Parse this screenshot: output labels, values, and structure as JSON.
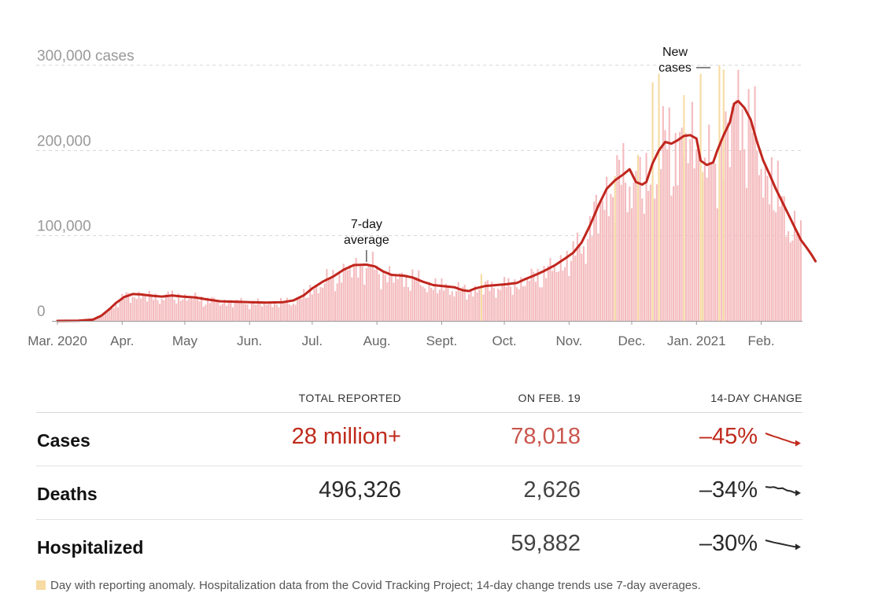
{
  "chart_data": {
    "type": "bar+line",
    "title": "",
    "xlabel": "",
    "ylabel": "cases",
    "ylim": [
      0,
      300000
    ],
    "y_ticks": [
      {
        "value": 0,
        "label": "0"
      },
      {
        "value": 100000,
        "label": "100,000"
      },
      {
        "value": 200000,
        "label": "200,000"
      },
      {
        "value": 300000,
        "label": "300,000 cases"
      }
    ],
    "x_ticks": [
      {
        "day": 0,
        "label": "Mar. 2020"
      },
      {
        "day": 31,
        "label": "Apr."
      },
      {
        "day": 61,
        "label": "May"
      },
      {
        "day": 92,
        "label": "Jun."
      },
      {
        "day": 122,
        "label": "Jul."
      },
      {
        "day": 153,
        "label": "Aug."
      },
      {
        "day": 184,
        "label": "Sept."
      },
      {
        "day": 214,
        "label": "Oct."
      },
      {
        "day": 245,
        "label": "Nov."
      },
      {
        "day": 275,
        "label": "Dec."
      },
      {
        "day": 306,
        "label": "Jan. 2021"
      },
      {
        "day": 337,
        "label": "Feb."
      }
    ],
    "total_days": 356,
    "series": [
      {
        "name": "7-day average",
        "points": [
          [
            0,
            0
          ],
          [
            10,
            200
          ],
          [
            17,
            1500
          ],
          [
            21,
            6000
          ],
          [
            25,
            14000
          ],
          [
            28,
            21000
          ],
          [
            32,
            28000
          ],
          [
            36,
            31500
          ],
          [
            40,
            31000
          ],
          [
            45,
            29500
          ],
          [
            50,
            28500
          ],
          [
            55,
            29800
          ],
          [
            60,
            28500
          ],
          [
            66,
            27500
          ],
          [
            72,
            25000
          ],
          [
            78,
            23000
          ],
          [
            85,
            22500
          ],
          [
            92,
            22000
          ],
          [
            100,
            21500
          ],
          [
            108,
            22000
          ],
          [
            113,
            24000
          ],
          [
            118,
            30000
          ],
          [
            122,
            38000
          ],
          [
            127,
            46000
          ],
          [
            132,
            52000
          ],
          [
            137,
            60000
          ],
          [
            142,
            65500
          ],
          [
            148,
            66000
          ],
          [
            152,
            64000
          ],
          [
            156,
            58000
          ],
          [
            160,
            54000
          ],
          [
            166,
            53000
          ],
          [
            170,
            51000
          ],
          [
            175,
            46000
          ],
          [
            180,
            42000
          ],
          [
            186,
            40500
          ],
          [
            190,
            39500
          ],
          [
            194,
            36000
          ],
          [
            197,
            35000
          ],
          [
            200,
            38000
          ],
          [
            205,
            41000
          ],
          [
            210,
            42000
          ],
          [
            215,
            43000
          ],
          [
            220,
            44500
          ],
          [
            224,
            49000
          ],
          [
            228,
            53000
          ],
          [
            233,
            58500
          ],
          [
            238,
            65000
          ],
          [
            243,
            73000
          ],
          [
            247,
            80000
          ],
          [
            251,
            92000
          ],
          [
            255,
            112000
          ],
          [
            259,
            135000
          ],
          [
            263,
            155000
          ],
          [
            267,
            165000
          ],
          [
            271,
            172000
          ],
          [
            274,
            178000
          ],
          [
            277,
            163000
          ],
          [
            280,
            160000
          ],
          [
            282,
            163000
          ],
          [
            285,
            185000
          ],
          [
            288,
            200000
          ],
          [
            291,
            210000
          ],
          [
            294,
            208000
          ],
          [
            297,
            212000
          ],
          [
            300,
            217000
          ],
          [
            303,
            218000
          ],
          [
            306,
            214000
          ],
          [
            308,
            188000
          ],
          [
            311,
            183000
          ],
          [
            314,
            186000
          ],
          [
            316,
            200000
          ],
          [
            319,
            218000
          ],
          [
            322,
            233000
          ],
          [
            324,
            255000
          ],
          [
            326,
            258000
          ],
          [
            329,
            250000
          ],
          [
            332,
            236000
          ],
          [
            335,
            210000
          ],
          [
            338,
            188000
          ],
          [
            341,
            172000
          ],
          [
            344,
            155000
          ],
          [
            347,
            140000
          ],
          [
            350,
            125000
          ],
          [
            353,
            110000
          ],
          [
            356,
            95000
          ],
          [
            359,
            85000
          ],
          [
            361,
            78000
          ],
          [
            363,
            70000
          ]
        ]
      }
    ],
    "bars": "daily new cases scatter around the 7-day average",
    "anomaly_days": [
      {
        "day": 203,
        "value": 55000
      },
      {
        "day": 267,
        "value": 170000
      },
      {
        "day": 278,
        "value": 195000
      },
      {
        "day": 285,
        "value": 280000
      },
      {
        "day": 288,
        "value": 290000
      },
      {
        "day": 300,
        "value": 265000
      },
      {
        "day": 308,
        "value": 290000
      },
      {
        "day": 309,
        "value": 175000
      },
      {
        "day": 317,
        "value": 300000
      },
      {
        "day": 319,
        "value": 295000
      }
    ],
    "annotations": [
      {
        "text_lines": [
          "7-day",
          "average"
        ],
        "day": 148
      },
      {
        "text_lines": [
          "New",
          "cases"
        ],
        "day": 320
      }
    ]
  },
  "colors": {
    "line": "#c0261e",
    "bars": "#f4bcbf",
    "anomaly": "#f6dba3",
    "grid": "#d5d5d5",
    "red_text": "#bf2b1c",
    "dark_text": "#2a2a2a"
  },
  "table": {
    "headers": {
      "total": "TOTAL REPORTED",
      "on_day": "ON FEB. 19",
      "change": "14-DAY CHANGE"
    },
    "rows": [
      {
        "label": "Cases",
        "total": "28 million+",
        "on_day": "78,018",
        "change": "–45%",
        "trend": [
          1.0,
          0.93,
          0.86,
          0.8,
          0.73,
          0.67,
          0.6,
          0.55
        ]
      },
      {
        "label": "Deaths",
        "total": "496,326",
        "on_day": "2,626",
        "change": "–34%",
        "trend": [
          1.0,
          0.97,
          0.99,
          0.92,
          0.94,
          0.84,
          0.8,
          0.72
        ]
      },
      {
        "label": "Hospitalized",
        "total": "",
        "on_day": "59,882",
        "change": "–30%",
        "trend": [
          1.0,
          0.95,
          0.9,
          0.86,
          0.82,
          0.78,
          0.74,
          0.7
        ]
      }
    ]
  },
  "footnote": "Day with reporting anomaly. Hospitalization data from the Covid Tracking Project; 14-day change trends use 7-day averages."
}
